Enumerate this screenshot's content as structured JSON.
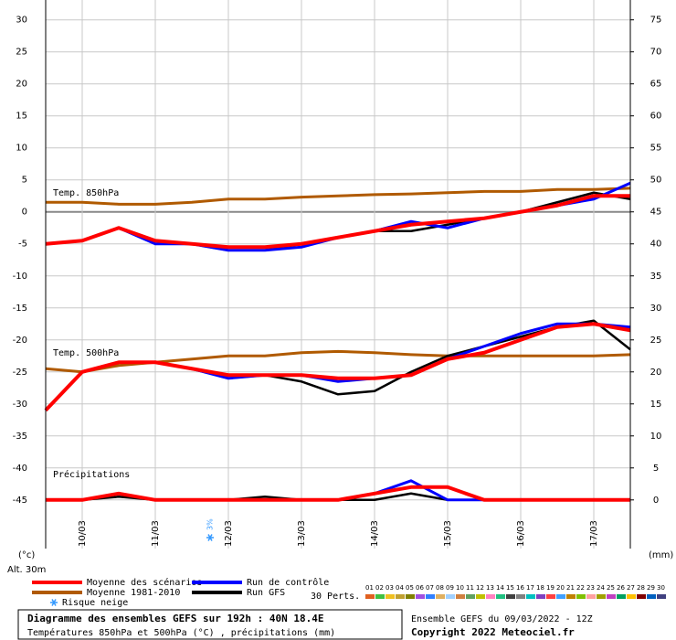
{
  "chart_data": {
    "type": "line",
    "title": "Diagramme des ensembles GEFS sur 192h : 40N 18.4E",
    "subtitle": "Températures 850hPa et 500hPa (°C) , précipitations (mm)",
    "run_info": "Ensemble GEFS du 09/03/2022 - 12Z",
    "copyright": "Copyright 2022 Meteociel.fr",
    "annotations": {
      "t850": "Temp. 850hPa",
      "t500": "Temp. 500hPa",
      "precip": "Précipitations",
      "y_unit": "(°c)",
      "y2_unit": "(mm)",
      "altitude": "Alt. 30m"
    },
    "x": [
      0,
      12,
      24,
      36,
      48,
      60,
      72,
      84,
      96,
      108,
      120,
      132,
      144,
      156,
      168,
      180,
      192
    ],
    "xlim": [
      0,
      192
    ],
    "xticks": [
      {
        "value": 12,
        "label": "10/03"
      },
      {
        "value": 36,
        "label": "11/03"
      },
      {
        "value": 60,
        "label": "12/03"
      },
      {
        "value": 84,
        "label": "13/03"
      },
      {
        "value": 108,
        "label": "14/03"
      },
      {
        "value": 132,
        "label": "15/03"
      },
      {
        "value": 156,
        "label": "16/03"
      },
      {
        "value": 180,
        "label": "17/03"
      }
    ],
    "ylim": [
      -52.6,
      33.1
    ],
    "yticks": [
      -45,
      -40,
      -35,
      -30,
      -25,
      -20,
      -15,
      -10,
      -5,
      0,
      5,
      10,
      15,
      20,
      25,
      30
    ],
    "y2lim": [
      -7.6,
      78.1
    ],
    "y2ticks": [
      0,
      5,
      10,
      15,
      20,
      25,
      30,
      35,
      40,
      45,
      50,
      55,
      60,
      65,
      70,
      75
    ],
    "grid": true,
    "series": [
      {
        "name": "Moyenne des scénarios",
        "color": "#ff0000",
        "width": 4,
        "t850": [
          -5,
          -4.5,
          -2.5,
          -4.5,
          -5,
          -5.5,
          -5.5,
          -5,
          -4,
          -3,
          -2,
          -1.5,
          -1,
          0,
          1,
          2.5,
          2.5
        ],
        "t500": [
          -31,
          -25,
          -23.5,
          -23.5,
          -24.5,
          -25.5,
          -25.5,
          -25.5,
          -26,
          -26,
          -25.5,
          -23,
          -22,
          -20,
          -18,
          -17.5,
          -18.5
        ],
        "precip": [
          0,
          0,
          1,
          0,
          0,
          0,
          0,
          0,
          0,
          1,
          2,
          2,
          0,
          0,
          0,
          0,
          0
        ]
      },
      {
        "name": "Moyenne 1981-2010",
        "color": "#b05a00",
        "width": 3,
        "t850": [
          1.5,
          1.5,
          1.2,
          1.2,
          1.5,
          2,
          2,
          2.3,
          2.5,
          2.7,
          2.8,
          3,
          3.2,
          3.2,
          3.5,
          3.5,
          3.7
        ],
        "t500": [
          -24.5,
          -25,
          -24,
          -23.5,
          -23,
          -22.5,
          -22.5,
          -22,
          -21.8,
          -22,
          -22.3,
          -22.5,
          -22.5,
          -22.5,
          -22.5,
          -22.5,
          -22.3
        ]
      },
      {
        "name": "Run de contrôle",
        "color": "#0000ff",
        "width": 3,
        "t850": [
          -5,
          -4.5,
          -2.5,
          -5,
          -5,
          -6,
          -6,
          -5.5,
          -4,
          -3,
          -1.5,
          -2.5,
          -1,
          0,
          1,
          2,
          4.5
        ],
        "t500": [
          -31,
          -25,
          -23.5,
          -23.5,
          -24.5,
          -26,
          -25.5,
          -25.5,
          -26.5,
          -26,
          -25.5,
          -23,
          -21,
          -19,
          -17.5,
          -17.5,
          -18
        ],
        "precip": [
          0,
          0,
          1,
          0,
          0,
          0,
          0,
          0,
          0,
          1,
          3,
          0,
          0,
          0,
          0,
          0,
          0
        ]
      },
      {
        "name": "Run GFS",
        "color": "#000000",
        "width": 2.5,
        "t850": [
          -5,
          -4.5,
          -2.5,
          -4.5,
          -5,
          -6,
          -6,
          -5,
          -4,
          -3,
          -3,
          -2,
          -1,
          0,
          1.5,
          3,
          2
        ],
        "t500": [
          -31,
          -25,
          -23.5,
          -23.5,
          -24.5,
          -26,
          -25.5,
          -26.5,
          -28.5,
          -28,
          -25,
          -22.5,
          -21,
          -19.5,
          -18,
          -17,
          -21.5
        ],
        "precip": [
          0,
          0,
          0.5,
          0,
          0,
          0,
          0.5,
          0,
          0,
          0,
          1,
          0,
          0,
          0,
          0,
          0,
          0
        ]
      }
    ],
    "snow_risk": {
      "name": "Risque neige",
      "x": 54,
      "value": 3,
      "value_label": "3%"
    },
    "perturbations": {
      "label": "30 Perts.",
      "members": [
        {
          "name": "01",
          "color": "#e06020"
        },
        {
          "name": "02",
          "color": "#40c040"
        },
        {
          "name": "03",
          "color": "#f0c020"
        },
        {
          "name": "04",
          "color": "#c0a030"
        },
        {
          "name": "05",
          "color": "#808000"
        },
        {
          "name": "06",
          "color": "#a050e0"
        },
        {
          "name": "07",
          "color": "#3080ff"
        },
        {
          "name": "08",
          "color": "#e0b060"
        },
        {
          "name": "09",
          "color": "#a0d0ff"
        },
        {
          "name": "10",
          "color": "#d08040"
        },
        {
          "name": "11",
          "color": "#60a060"
        },
        {
          "name": "12",
          "color": "#c0c000"
        },
        {
          "name": "13",
          "color": "#ff80c0"
        },
        {
          "name": "14",
          "color": "#20c080"
        },
        {
          "name": "15",
          "color": "#404040"
        },
        {
          "name": "16",
          "color": "#808080"
        },
        {
          "name": "17",
          "color": "#00c0c0"
        },
        {
          "name": "18",
          "color": "#8040c0"
        },
        {
          "name": "19",
          "color": "#ff4040"
        },
        {
          "name": "20",
          "color": "#40a0ff"
        },
        {
          "name": "21",
          "color": "#c08000"
        },
        {
          "name": "22",
          "color": "#80c000"
        },
        {
          "name": "23",
          "color": "#ffa0a0"
        },
        {
          "name": "24",
          "color": "#a0a000"
        },
        {
          "name": "25",
          "color": "#c040c0"
        },
        {
          "name": "26",
          "color": "#00a060"
        },
        {
          "name": "27",
          "color": "#ffc000"
        },
        {
          "name": "28",
          "color": "#800000"
        },
        {
          "name": "29",
          "color": "#0060c0"
        },
        {
          "name": "30",
          "color": "#404080"
        }
      ]
    }
  }
}
